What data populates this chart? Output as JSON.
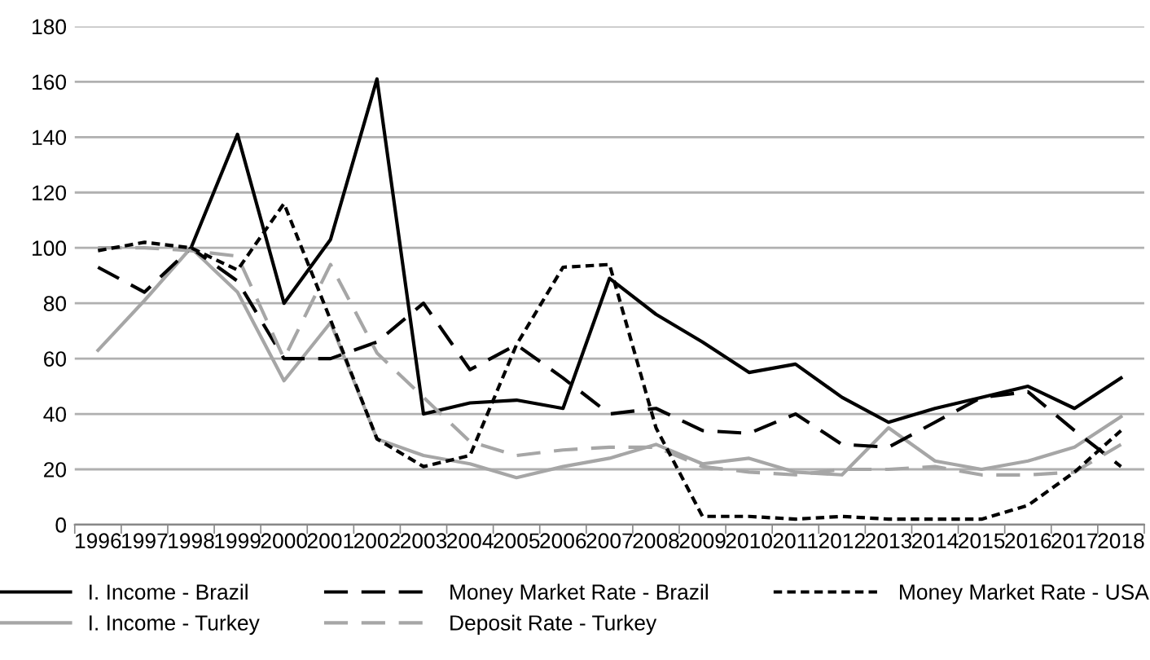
{
  "chart_data": {
    "type": "line",
    "categories": [
      "1996",
      "1997",
      "1998",
      "1999",
      "2000",
      "2001",
      "2002",
      "2003",
      "2004",
      "2005",
      "2006",
      "2007",
      "2008",
      "2009",
      "2010",
      "2011",
      "2012",
      "2013",
      "2014",
      "2015",
      "2016",
      "2017",
      "2018"
    ],
    "series": [
      {
        "name": "I. Income - Brazil",
        "color": "#000000",
        "line_style": "solid",
        "values": [
          null,
          null,
          100,
          141,
          80,
          103,
          161,
          40,
          44,
          45,
          42,
          89,
          76,
          66,
          55,
          58,
          46,
          37,
          42,
          46,
          50,
          42,
          53
        ]
      },
      {
        "name": "I. Income - Turkey",
        "color": "#a6a6a6",
        "line_style": "solid",
        "values": [
          63,
          81,
          100,
          84,
          52,
          73,
          31,
          25,
          22,
          17,
          21,
          24,
          29,
          22,
          24,
          19,
          18,
          35,
          23,
          20,
          23,
          28,
          39
        ]
      },
      {
        "name": "Money Market Rate - Brazil",
        "color": "#000000",
        "line_style": "dashed",
        "values": [
          93,
          84,
          100,
          88,
          60,
          60,
          66,
          80,
          56,
          65,
          53,
          40,
          42,
          34,
          33,
          40,
          29,
          28,
          37,
          46,
          48,
          34,
          21
        ]
      },
      {
        "name": "Deposit Rate - Turkey",
        "color": "#a6a6a6",
        "line_style": "dashed",
        "values": [
          100,
          100,
          99,
          97,
          60,
          94,
          62,
          46,
          30,
          25,
          27,
          28,
          28,
          21,
          19,
          18,
          20,
          20,
          21,
          18,
          18,
          19,
          29
        ]
      },
      {
        "name": "Money Market Rate - USA",
        "color": "#000000",
        "line_style": "dotted",
        "values": [
          99,
          102,
          100,
          92,
          116,
          74,
          31,
          21,
          25,
          65,
          93,
          94,
          35,
          3,
          3,
          2,
          3,
          2,
          2,
          2,
          7,
          19,
          34
        ]
      }
    ],
    "ylim": [
      0,
      180
    ],
    "yticks": [
      0,
      20,
      40,
      60,
      80,
      100,
      120,
      140,
      160,
      180
    ],
    "grid": "y",
    "legend": "bottom",
    "marker": "none"
  }
}
